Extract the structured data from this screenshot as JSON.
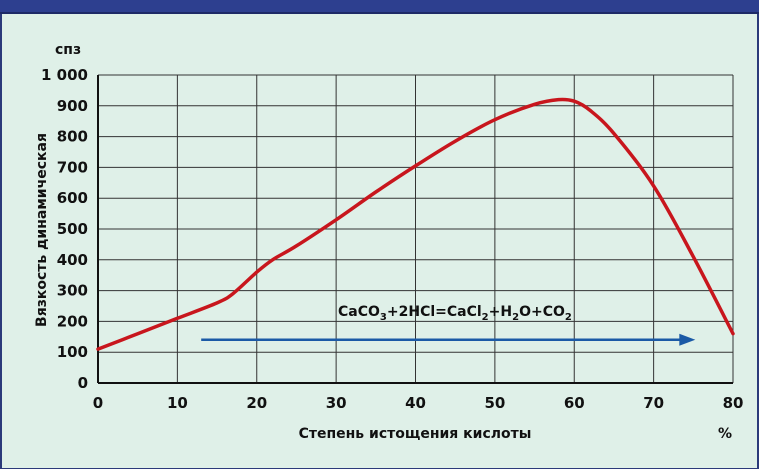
{
  "chart_data": {
    "type": "line",
    "y_unit_label": "спз",
    "ylabel": "Вязкость динамическая",
    "xlabel": "Степень истощения кислоты",
    "x_unit_label": "%",
    "xlim": [
      0,
      80
    ],
    "ylim": [
      0,
      1000
    ],
    "x_ticks": [
      0,
      10,
      20,
      30,
      40,
      50,
      60,
      70,
      80
    ],
    "y_ticks": [
      0,
      100,
      200,
      300,
      400,
      500,
      600,
      700,
      800,
      900,
      1000
    ],
    "x_tick_labels": [
      "0",
      "10",
      "20",
      "30",
      "40",
      "50",
      "60",
      "70",
      "80"
    ],
    "y_tick_labels": [
      "0",
      "100",
      "200",
      "300",
      "400",
      "500",
      "600",
      "700",
      "800",
      "900",
      "1 000"
    ],
    "grid": true,
    "series": [
      {
        "color": "#c8161d",
        "x": [
          0,
          5,
          10,
          15,
          17,
          20,
          22,
          25,
          30,
          35,
          40,
          45,
          50,
          55,
          58,
          60,
          62,
          65,
          70,
          75,
          80
        ],
        "y": [
          110,
          160,
          210,
          260,
          290,
          360,
          400,
          445,
          530,
          620,
          705,
          785,
          855,
          905,
          920,
          915,
          885,
          810,
          640,
          410,
          160
        ]
      }
    ],
    "annotations": [
      {
        "text_parts": [
          "CaCO",
          "3",
          "+2HCl=CaCl",
          "2",
          "+H",
          "2",
          "O+CO",
          "2"
        ],
        "arrow": {
          "x_from": 13,
          "x_to": 75,
          "y": 150,
          "color": "#1b5aa6"
        }
      }
    ]
  }
}
